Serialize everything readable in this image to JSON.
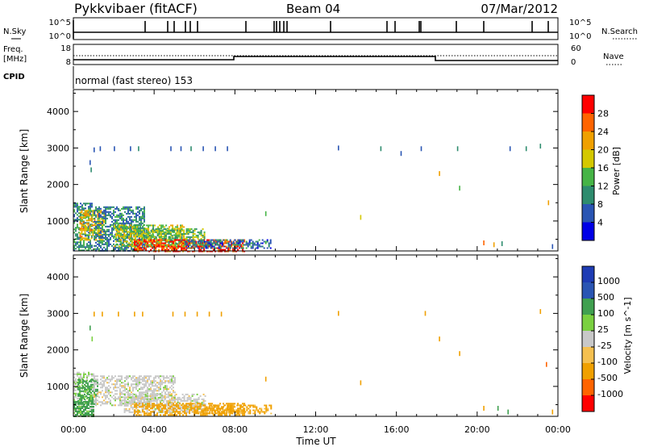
{
  "header": {
    "station": "Pykkvibaer (fitACF)",
    "beam": "Beam 04",
    "date": "07/Mar/2012",
    "program": "normal (fast stereo) 153"
  },
  "strip_labels": {
    "nsky": "N.Sky",
    "nsky_ticks": [
      "10^5",
      "10^0"
    ],
    "nsearch": "N.Search",
    "nsearch_ticks": [
      "10^5",
      "10^0"
    ],
    "freq": "Freq.",
    "freq_unit": "[MHz]",
    "freq_ticks": [
      "18",
      "8"
    ],
    "nave": "Nave",
    "nave_ticks": [
      "60",
      "0"
    ],
    "cpid": "CPID"
  },
  "colors": {
    "power_scale": [
      "#0000e6",
      "#2a55b3",
      "#2e8c6e",
      "#46b446",
      "#d4c800",
      "#f0a000",
      "#ff6400",
      "#ff0000"
    ],
    "velocity_scale": [
      "#ff0000",
      "#ff6400",
      "#f0a000",
      "#f5c050",
      "#c8c8c8",
      "#7ad040",
      "#40a050",
      "#2a55b3",
      "#1e3cb4"
    ]
  },
  "chart_data": [
    {
      "type": "heatmap",
      "name": "power",
      "xlabel": "Time UT",
      "ylabel": "Slant Range [km]",
      "colorbar_label": "Power [dB]",
      "x_tick_labels": [
        "00:00",
        "04:00",
        "08:00",
        "12:00",
        "16:00",
        "20:00",
        "00:00"
      ],
      "y_tick_labels": [
        "1000",
        "2000",
        "3000",
        "4000"
      ],
      "xlim": [
        0,
        24
      ],
      "ylim": [
        180,
        4600
      ],
      "colorbar_ticks": [
        "4",
        "8",
        "12",
        "16",
        "20",
        "24",
        "28"
      ],
      "colorbar_range": [
        0,
        32
      ],
      "regions": [
        {
          "t": [
            0.0,
            0.9
          ],
          "r": [
            180,
            1500
          ],
          "value": 10
        },
        {
          "t": [
            0.3,
            1.5
          ],
          "r": [
            500,
            1300
          ],
          "value": 20
        },
        {
          "t": [
            1.0,
            3.5
          ],
          "r": [
            200,
            1400
          ],
          "value": 9
        },
        {
          "t": [
            2.0,
            5.5
          ],
          "r": [
            300,
            900
          ],
          "value": 16
        },
        {
          "t": [
            3.5,
            6.5
          ],
          "r": [
            300,
            800
          ],
          "value": 14
        },
        {
          "t": [
            3.0,
            8.5
          ],
          "r": [
            180,
            500
          ],
          "value": 28
        },
        {
          "t": [
            5.5,
            9.8
          ],
          "r": [
            250,
            500
          ],
          "value": 8
        }
      ],
      "points": [
        {
          "t": 0.8,
          "r": 2600,
          "value": 6
        },
        {
          "t": 0.85,
          "r": 2400,
          "value": 8
        },
        {
          "t": 1.0,
          "r": 2950,
          "value": 6
        },
        {
          "t": 1.3,
          "r": 2980,
          "value": 6
        },
        {
          "t": 2.0,
          "r": 2980,
          "value": 4
        },
        {
          "t": 2.8,
          "r": 2980,
          "value": 6
        },
        {
          "t": 3.2,
          "r": 2980,
          "value": 8
        },
        {
          "t": 4.8,
          "r": 2980,
          "value": 6
        },
        {
          "t": 5.3,
          "r": 2980,
          "value": 6
        },
        {
          "t": 5.8,
          "r": 2980,
          "value": 8
        },
        {
          "t": 6.4,
          "r": 2980,
          "value": 6
        },
        {
          "t": 7.0,
          "r": 2980,
          "value": 6
        },
        {
          "t": 7.6,
          "r": 2980,
          "value": 6
        },
        {
          "t": 9.5,
          "r": 1200,
          "value": 12
        },
        {
          "t": 13.1,
          "r": 3000,
          "value": 4
        },
        {
          "t": 14.2,
          "r": 1100,
          "value": 16
        },
        {
          "t": 15.2,
          "r": 2980,
          "value": 8
        },
        {
          "t": 16.2,
          "r": 2850,
          "value": 6
        },
        {
          "t": 17.2,
          "r": 2980,
          "value": 4
        },
        {
          "t": 18.1,
          "r": 2300,
          "value": 20
        },
        {
          "t": 19.0,
          "r": 2980,
          "value": 8
        },
        {
          "t": 19.1,
          "r": 1900,
          "value": 12
        },
        {
          "t": 20.3,
          "r": 400,
          "value": 24
        },
        {
          "t": 20.8,
          "r": 350,
          "value": 20
        },
        {
          "t": 21.2,
          "r": 380,
          "value": 8
        },
        {
          "t": 21.6,
          "r": 2980,
          "value": 6
        },
        {
          "t": 22.4,
          "r": 2980,
          "value": 8
        },
        {
          "t": 23.1,
          "r": 3050,
          "value": 8
        },
        {
          "t": 23.5,
          "r": 1500,
          "value": 20
        },
        {
          "t": 23.7,
          "r": 300,
          "value": 6
        }
      ]
    },
    {
      "type": "heatmap",
      "name": "velocity",
      "xlabel": "Time UT",
      "ylabel": "Slant Range [km]",
      "colorbar_label": "Velocity [m s^-1]",
      "x_tick_labels": [
        "00:00",
        "04:00",
        "08:00",
        "12:00",
        "16:00",
        "20:00",
        "00:00"
      ],
      "y_tick_labels": [
        "1000",
        "2000",
        "3000",
        "4000"
      ],
      "xlim": [
        0,
        24
      ],
      "ylim": [
        180,
        4600
      ],
      "colorbar_ticks": [
        "1000",
        "500",
        "100",
        "25",
        "-25",
        "-100",
        "-500",
        "-1000"
      ],
      "regions": [
        {
          "t": [
            0.0,
            1.0
          ],
          "r": [
            180,
            1400
          ],
          "value": 25
        },
        {
          "t": [
            0.2,
            1.2
          ],
          "r": [
            500,
            1200
          ],
          "value": 150
        },
        {
          "t": [
            1.0,
            5.0
          ],
          "r": [
            500,
            1300
          ],
          "value": 0
        },
        {
          "t": [
            2.5,
            6.5
          ],
          "r": [
            300,
            800
          ],
          "value": 0
        },
        {
          "t": [
            3.0,
            8.5
          ],
          "r": [
            200,
            550
          ],
          "value": -150
        },
        {
          "t": [
            6.0,
            9.8
          ],
          "r": [
            250,
            500
          ],
          "value": -120
        },
        {
          "t": [
            0.0,
            1.0
          ],
          "r": [
            200,
            600
          ],
          "value": 300
        }
      ],
      "points": [
        {
          "t": 0.8,
          "r": 2600,
          "value": 150
        },
        {
          "t": 0.9,
          "r": 2300,
          "value": 100
        },
        {
          "t": 1.0,
          "r": 2980,
          "value": -100
        },
        {
          "t": 1.4,
          "r": 2980,
          "value": -100
        },
        {
          "t": 2.2,
          "r": 2980,
          "value": -150
        },
        {
          "t": 3.0,
          "r": 2980,
          "value": -100
        },
        {
          "t": 3.4,
          "r": 2980,
          "value": -120
        },
        {
          "t": 4.9,
          "r": 2980,
          "value": -100
        },
        {
          "t": 5.5,
          "r": 2980,
          "value": -150
        },
        {
          "t": 6.1,
          "r": 2980,
          "value": -100
        },
        {
          "t": 6.7,
          "r": 2980,
          "value": -120
        },
        {
          "t": 7.3,
          "r": 2980,
          "value": -100
        },
        {
          "t": 9.5,
          "r": 1200,
          "value": -150
        },
        {
          "t": 13.1,
          "r": 3000,
          "value": -100
        },
        {
          "t": 14.2,
          "r": 1100,
          "value": -100
        },
        {
          "t": 17.4,
          "r": 3000,
          "value": -100
        },
        {
          "t": 18.1,
          "r": 2300,
          "value": -150
        },
        {
          "t": 19.1,
          "r": 1900,
          "value": -120
        },
        {
          "t": 20.3,
          "r": 400,
          "value": -150
        },
        {
          "t": 21.0,
          "r": 400,
          "value": 300
        },
        {
          "t": 21.5,
          "r": 300,
          "value": 150
        },
        {
          "t": 23.1,
          "r": 3050,
          "value": -100
        },
        {
          "t": 23.4,
          "r": 1600,
          "value": -600
        },
        {
          "t": 23.7,
          "r": 300,
          "value": -120
        }
      ]
    }
  ]
}
